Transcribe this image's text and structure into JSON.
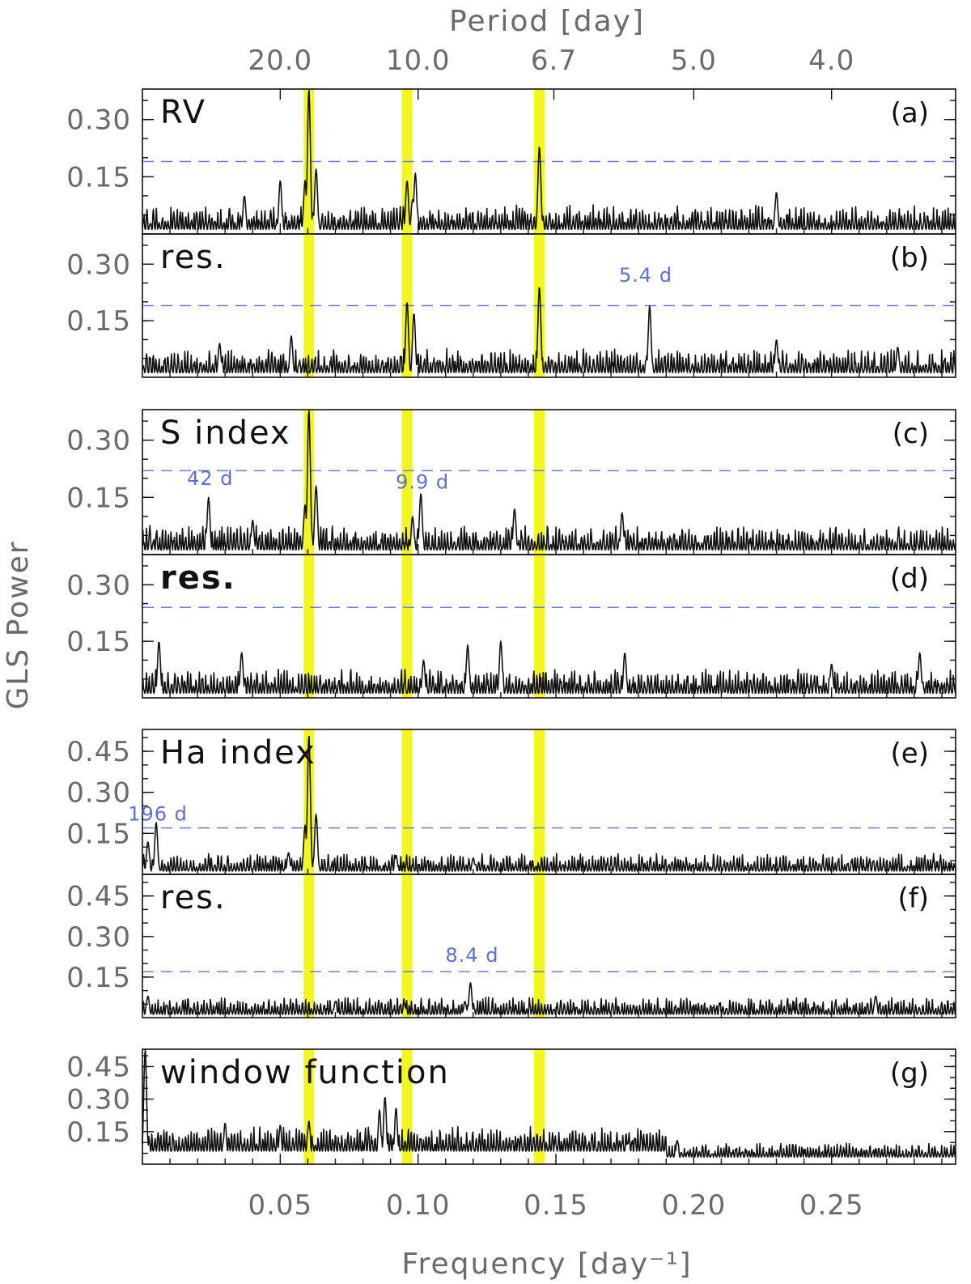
{
  "chart_data": {
    "type": "line",
    "xlabel": "Frequency [day⁻¹]",
    "top_xlabel": "Period [day]",
    "ylabel": "GLS Power",
    "xlim": [
      0.0,
      0.295
    ],
    "x_ticks": [
      0.05,
      0.1,
      0.15,
      0.2,
      0.25
    ],
    "x_tick_labels": [
      "0.05",
      "0.10",
      "0.15",
      "0.20",
      "0.25"
    ],
    "top_ticks": [
      {
        "period": 20.0,
        "label": "20.0"
      },
      {
        "period": 10.0,
        "label": "10.0"
      },
      {
        "period": 6.7,
        "label": "6.7"
      },
      {
        "period": 5.0,
        "label": "5.0"
      },
      {
        "period": 4.0,
        "label": "4.0"
      }
    ],
    "highlight_frequencies": [
      0.0604,
      0.096,
      0.144
    ],
    "panels": [
      {
        "label": "RV",
        "letter": "(a)",
        "bold": false,
        "ylim": [
          0,
          0.38
        ],
        "yticks": [
          "0.30",
          "0.15"
        ],
        "ytick_values": [
          0.3,
          0.15
        ],
        "threshold": 0.19,
        "peaks": [
          [
            0.0604,
            0.38
          ],
          [
            0.059,
            0.14
          ],
          [
            0.063,
            0.17
          ],
          [
            0.096,
            0.14
          ],
          [
            0.099,
            0.16
          ],
          [
            0.144,
            0.23
          ],
          [
            0.05,
            0.14
          ],
          [
            0.037,
            0.1
          ],
          [
            0.23,
            0.11
          ],
          [
            0.098,
            0.09
          ]
        ],
        "annotations": []
      },
      {
        "label": "res.",
        "letter": "(b)",
        "bold": false,
        "ylim": [
          0,
          0.38
        ],
        "yticks": [
          "0.30",
          "0.15"
        ],
        "ytick_values": [
          0.3,
          0.15
        ],
        "threshold": 0.19,
        "peaks": [
          [
            0.096,
            0.2
          ],
          [
            0.0985,
            0.17
          ],
          [
            0.144,
            0.24
          ],
          [
            0.184,
            0.19
          ],
          [
            0.054,
            0.11
          ],
          [
            0.028,
            0.09
          ],
          [
            0.23,
            0.1
          ],
          [
            0.274,
            0.08
          ]
        ],
        "annotations": [
          {
            "text": "5.4 d",
            "x": 0.182,
            "y": 0.27
          }
        ]
      },
      {
        "label": "S index",
        "letter": "(c)",
        "bold": false,
        "ylim": [
          0,
          0.38
        ],
        "yticks": [
          "0.30",
          "0.15"
        ],
        "ytick_values": [
          0.3,
          0.15
        ],
        "threshold": 0.22,
        "peaks": [
          [
            0.0604,
            0.38
          ],
          [
            0.059,
            0.13
          ],
          [
            0.063,
            0.18
          ],
          [
            0.024,
            0.15
          ],
          [
            0.101,
            0.16
          ],
          [
            0.098,
            0.1
          ],
          [
            0.135,
            0.12
          ],
          [
            0.174,
            0.11
          ],
          [
            0.04,
            0.09
          ]
        ],
        "annotations": [
          {
            "text": "42 d",
            "x": 0.024,
            "y": 0.2
          },
          {
            "text": "9.9 d",
            "x": 0.101,
            "y": 0.19
          }
        ]
      },
      {
        "label": "res.",
        "letter": "(d)",
        "bold": true,
        "ylim": [
          0,
          0.38
        ],
        "yticks": [
          "0.30",
          "0.15"
        ],
        "ytick_values": [
          0.3,
          0.15
        ],
        "threshold": 0.24,
        "peaks": [
          [
            0.006,
            0.15
          ],
          [
            0.118,
            0.14
          ],
          [
            0.13,
            0.15
          ],
          [
            0.175,
            0.12
          ],
          [
            0.282,
            0.12
          ],
          [
            0.036,
            0.12
          ],
          [
            0.102,
            0.1
          ],
          [
            0.25,
            0.09
          ]
        ],
        "annotations": []
      },
      {
        "label": "Ha index",
        "letter": "(e)",
        "bold": false,
        "ylim": [
          0,
          0.53
        ],
        "yticks": [
          "0.45",
          "0.30",
          "0.15"
        ],
        "ytick_values": [
          0.45,
          0.3,
          0.15
        ],
        "threshold": 0.17,
        "peaks": [
          [
            0.0604,
            0.51
          ],
          [
            0.059,
            0.18
          ],
          [
            0.063,
            0.22
          ],
          [
            0.005,
            0.19
          ],
          [
            0.002,
            0.12
          ],
          [
            0.053,
            0.08
          ],
          [
            0.092,
            0.07
          ],
          [
            0.12,
            0.06
          ]
        ],
        "annotations": [
          {
            "text": "196 d",
            "x": 0.005,
            "y": 0.22
          }
        ]
      },
      {
        "label": "res.",
        "letter": "(f)",
        "bold": false,
        "ylim": [
          0,
          0.53
        ],
        "yticks": [
          "0.45",
          "0.30",
          "0.15"
        ],
        "ytick_values": [
          0.45,
          0.3,
          0.15
        ],
        "threshold": 0.17,
        "peaks": [
          [
            0.119,
            0.13
          ],
          [
            0.117,
            0.06
          ],
          [
            0.266,
            0.08
          ],
          [
            0.002,
            0.08
          ],
          [
            0.07,
            0.06
          ],
          [
            0.095,
            0.05
          ]
        ],
        "annotations": [
          {
            "text": "8.4 d",
            "x": 0.119,
            "y": 0.23
          }
        ]
      },
      {
        "label": "window function",
        "letter": "(g)",
        "bold": false,
        "ylim": [
          0,
          0.53
        ],
        "yticks": [
          "0.45",
          "0.30",
          "0.15"
        ],
        "ytick_values": [
          0.45,
          0.3,
          0.15
        ],
        "threshold": null,
        "peaks": [
          [
            0.001,
            0.53
          ],
          [
            0.088,
            0.31
          ],
          [
            0.086,
            0.25
          ],
          [
            0.092,
            0.26
          ],
          [
            0.03,
            0.19
          ],
          [
            0.05,
            0.18
          ],
          [
            0.0604,
            0.2
          ],
          [
            0.194,
            0.11
          ],
          [
            0.176,
            0.1
          ]
        ],
        "annotations": []
      }
    ]
  }
}
